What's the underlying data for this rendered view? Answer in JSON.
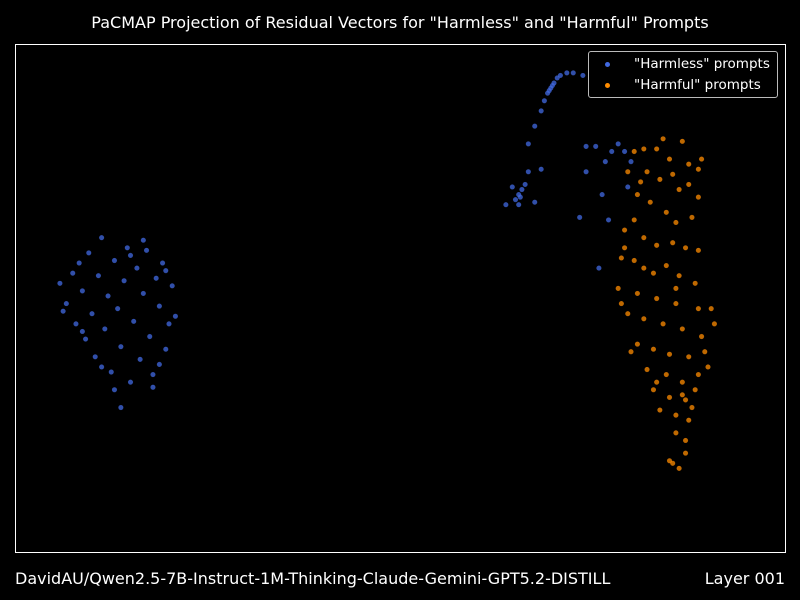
{
  "title": "PaCMAP Projection of Residual Vectors for \"Harmless\" and \"Harmful\" Prompts",
  "footer": {
    "model": "DavidAU/Qwen2.5-7B-Instruct-1M-Thinking-Claude-Gemini-GPT5.2-DISTILL",
    "layer": "Layer 001"
  },
  "chart_data": {
    "type": "scatter",
    "title": "PaCMAP Projection of Residual Vectors for \"Harmless\" and \"Harmful\" Prompts",
    "xlabel": "",
    "ylabel": "",
    "axes_visible": false,
    "grid": false,
    "legend_placement": "top-right",
    "xlim": [
      -12,
      12
    ],
    "ylim": [
      -10,
      10
    ],
    "series": [
      {
        "name": "\"Harmless\" prompts",
        "color": "#4169e1",
        "points": [
          [
            -10.6,
            0.6
          ],
          [
            -10.4,
            -0.2
          ],
          [
            -10.2,
            1.0
          ],
          [
            -10.1,
            -1.0
          ],
          [
            -9.9,
            0.3
          ],
          [
            -9.8,
            -1.6
          ],
          [
            -9.7,
            1.8
          ],
          [
            -9.6,
            -0.6
          ],
          [
            -9.5,
            -2.3
          ],
          [
            -9.4,
            0.9
          ],
          [
            -9.3,
            2.4
          ],
          [
            -9.2,
            -1.2
          ],
          [
            -9.1,
            0.1
          ],
          [
            -9.0,
            -2.9
          ],
          [
            -8.9,
            1.5
          ],
          [
            -8.8,
            -0.4
          ],
          [
            -8.7,
            -1.9
          ],
          [
            -8.6,
            0.7
          ],
          [
            -8.5,
            2.0
          ],
          [
            -8.4,
            -3.3
          ],
          [
            -8.3,
            -0.9
          ],
          [
            -8.2,
            1.2
          ],
          [
            -8.1,
            -2.4
          ],
          [
            -8.0,
            0.2
          ],
          [
            -7.9,
            1.9
          ],
          [
            -7.8,
            -1.5
          ],
          [
            -7.7,
            -3.0
          ],
          [
            -7.6,
            0.8
          ],
          [
            -7.5,
            -0.3
          ],
          [
            -7.4,
            1.4
          ],
          [
            -7.3,
            -2.0
          ],
          [
            -7.2,
            -1.0
          ],
          [
            -7.1,
            0.5
          ],
          [
            -7.0,
            -0.7
          ],
          [
            -7.5,
            -2.6
          ],
          [
            -8.7,
            -4.3
          ],
          [
            -9.9,
            -1.3
          ],
          [
            -10.5,
            -0.5
          ],
          [
            -8.0,
            2.3
          ],
          [
            -7.7,
            -3.5
          ],
          [
            -9.3,
            -2.7
          ],
          [
            -8.4,
            1.7
          ],
          [
            -7.3,
            1.1
          ],
          [
            -10.0,
            1.4
          ],
          [
            -8.9,
            -3.6
          ],
          [
            4.2,
            6.8
          ],
          [
            4.4,
            7.4
          ],
          [
            4.5,
            7.8
          ],
          [
            4.6,
            8.1
          ],
          [
            4.7,
            8.3
          ],
          [
            4.8,
            8.5
          ],
          [
            4.9,
            8.7
          ],
          [
            5.0,
            8.8
          ],
          [
            5.2,
            8.9
          ],
          [
            5.4,
            8.9
          ],
          [
            4.65,
            8.2
          ],
          [
            4.75,
            8.4
          ],
          [
            3.6,
            3.9
          ],
          [
            3.7,
            4.1
          ],
          [
            3.75,
            4.0
          ],
          [
            3.8,
            4.3
          ],
          [
            3.9,
            4.5
          ],
          [
            4.0,
            5.0
          ],
          [
            3.7,
            3.7
          ],
          [
            3.5,
            4.4
          ],
          [
            4.2,
            3.8
          ],
          [
            3.3,
            3.7
          ],
          [
            5.8,
            6.0
          ],
          [
            6.1,
            6.0
          ],
          [
            6.4,
            5.4
          ],
          [
            6.6,
            5.8
          ],
          [
            6.8,
            6.1
          ],
          [
            7.0,
            5.8
          ],
          [
            7.2,
            5.4
          ],
          [
            6.5,
            3.1
          ],
          [
            5.6,
            3.2
          ],
          [
            5.8,
            5.0
          ],
          [
            4.0,
            6.1
          ],
          [
            6.3,
            4.1
          ],
          [
            7.1,
            4.4
          ],
          [
            5.7,
            8.8
          ],
          [
            4.4,
            5.1
          ],
          [
            6.2,
            1.2
          ]
        ]
      },
      {
        "name": "\"Harmful\" prompts",
        "color": "#ff8c00",
        "points": [
          [
            7.3,
            5.8
          ],
          [
            7.6,
            5.9
          ],
          [
            8.0,
            5.9
          ],
          [
            8.4,
            5.5
          ],
          [
            8.8,
            6.2
          ],
          [
            9.0,
            5.3
          ],
          [
            9.3,
            5.1
          ],
          [
            7.1,
            5.0
          ],
          [
            7.5,
            4.6
          ],
          [
            8.1,
            4.7
          ],
          [
            8.7,
            4.3
          ],
          [
            9.0,
            4.5
          ],
          [
            9.3,
            4.0
          ],
          [
            7.4,
            4.1
          ],
          [
            7.8,
            3.8
          ],
          [
            8.3,
            3.4
          ],
          [
            8.6,
            3.0
          ],
          [
            9.1,
            3.2
          ],
          [
            7.0,
            2.7
          ],
          [
            7.6,
            2.4
          ],
          [
            8.0,
            2.1
          ],
          [
            8.5,
            2.2
          ],
          [
            8.9,
            2.0
          ],
          [
            6.9,
            1.6
          ],
          [
            7.3,
            1.5
          ],
          [
            7.9,
            1.0
          ],
          [
            8.3,
            1.3
          ],
          [
            8.7,
            0.9
          ],
          [
            9.2,
            0.6
          ],
          [
            6.8,
            0.4
          ],
          [
            7.4,
            0.2
          ],
          [
            8.0,
            0.0
          ],
          [
            8.6,
            -0.2
          ],
          [
            9.3,
            -0.4
          ],
          [
            7.1,
            -0.6
          ],
          [
            7.6,
            -0.8
          ],
          [
            8.2,
            -1.0
          ],
          [
            8.8,
            -1.2
          ],
          [
            9.4,
            -1.5
          ],
          [
            9.8,
            -1.0
          ],
          [
            7.4,
            -1.8
          ],
          [
            7.9,
            -2.0
          ],
          [
            8.4,
            -2.2
          ],
          [
            9.0,
            -2.3
          ],
          [
            9.5,
            -2.1
          ],
          [
            7.7,
            -2.8
          ],
          [
            8.3,
            -3.0
          ],
          [
            8.8,
            -3.3
          ],
          [
            9.3,
            -3.0
          ],
          [
            9.6,
            -2.7
          ],
          [
            7.9,
            -3.6
          ],
          [
            8.4,
            -3.9
          ],
          [
            8.9,
            -4.0
          ],
          [
            9.2,
            -3.6
          ],
          [
            8.1,
            -4.4
          ],
          [
            8.6,
            -4.6
          ],
          [
            9.0,
            -4.8
          ],
          [
            8.6,
            -5.3
          ],
          [
            8.9,
            -5.6
          ],
          [
            8.5,
            -6.5
          ],
          [
            8.7,
            -6.7
          ],
          [
            8.9,
            -6.1
          ],
          [
            8.4,
            -6.4
          ],
          [
            7.3,
            3.1
          ],
          [
            7.0,
            2.0
          ],
          [
            8.5,
            4.9
          ],
          [
            8.2,
            6.3
          ],
          [
            9.4,
            5.5
          ],
          [
            6.9,
            -0.2
          ],
          [
            7.2,
            -2.1
          ],
          [
            9.7,
            -0.4
          ],
          [
            8.8,
            -3.8
          ],
          [
            8.0,
            -3.3
          ],
          [
            9.1,
            -4.3
          ],
          [
            7.6,
            1.2
          ],
          [
            8.6,
            0.4
          ],
          [
            9.3,
            1.9
          ],
          [
            7.7,
            5.0
          ]
        ]
      }
    ]
  }
}
